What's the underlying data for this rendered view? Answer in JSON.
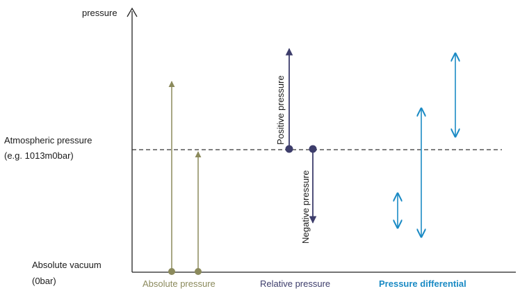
{
  "diagram": {
    "y_axis_label": "pressure",
    "levels": {
      "atmospheric_line1": "Atmospheric pressure",
      "atmospheric_line2": "(e.g. 1013m0bar)",
      "vacuum_line1": "Absolute vacuum",
      "vacuum_line2": "(0bar)"
    },
    "arrow_labels": {
      "positive": "Positive pressure",
      "negative": "Negative pressure"
    },
    "categories": {
      "absolute": "Absolute pressure",
      "relative": "Relative pressure",
      "differential": "Pressure differential"
    }
  },
  "colors": {
    "absolute": "#8b8a5c",
    "relative": "#3d3d6b",
    "differential": "#1a8ac4",
    "axis": "#222222",
    "atmospheric_line": "#333333"
  }
}
